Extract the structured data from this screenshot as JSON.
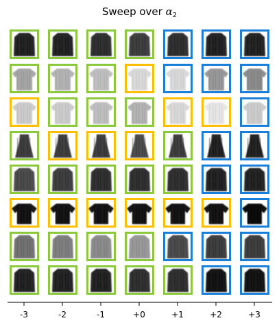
{
  "title": "Sweep over",
  "title_symbol": "α",
  "title_subscript": "2",
  "x_ticks": [
    "-3",
    "-2",
    "-1",
    "+0",
    "+1",
    "+2",
    "+3"
  ],
  "colors": {
    "green": "#8cc83c",
    "orange": "#ffbe00",
    "blue": "#1a7fd9"
  },
  "garment_kinds": [
    "coat",
    "shirt",
    "shirt-light",
    "dress",
    "coat",
    "tshirt",
    "coat-light",
    "coat"
  ],
  "frame_colors": [
    [
      "green",
      "green",
      "green",
      "green",
      "blue",
      "blue",
      "blue"
    ],
    [
      "green",
      "green",
      "green",
      "orange",
      "blue",
      "blue",
      "blue"
    ],
    [
      "orange",
      "green",
      "green",
      "green",
      "orange",
      "orange",
      "blue"
    ],
    [
      "green",
      "orange",
      "orange",
      "orange",
      "green",
      "blue",
      "blue"
    ],
    [
      "green",
      "green",
      "green",
      "green",
      "green",
      "blue",
      "blue"
    ],
    [
      "orange",
      "orange",
      "orange",
      "orange",
      "orange",
      "orange",
      "blue"
    ],
    [
      "green",
      "green",
      "green",
      "green",
      "blue",
      "blue",
      "blue"
    ],
    [
      "green",
      "green",
      "green",
      "green",
      "green",
      "blue",
      "blue"
    ]
  ],
  "darkness": [
    [
      0.85,
      0.85,
      0.8,
      0.75,
      0.8,
      0.85,
      0.85
    ],
    [
      0.35,
      0.3,
      0.25,
      0.15,
      0.15,
      0.4,
      0.45
    ],
    [
      0.2,
      0.2,
      0.25,
      0.3,
      0.15,
      0.1,
      0.2
    ],
    [
      0.75,
      0.75,
      0.75,
      0.7,
      0.75,
      0.85,
      0.85
    ],
    [
      0.7,
      0.75,
      0.8,
      0.8,
      0.8,
      0.85,
      0.85
    ],
    [
      0.9,
      0.9,
      0.9,
      0.9,
      0.9,
      0.9,
      0.95
    ],
    [
      0.55,
      0.5,
      0.45,
      0.4,
      0.7,
      0.75,
      0.75
    ],
    [
      0.85,
      0.85,
      0.85,
      0.8,
      0.8,
      0.9,
      0.9
    ]
  ]
}
